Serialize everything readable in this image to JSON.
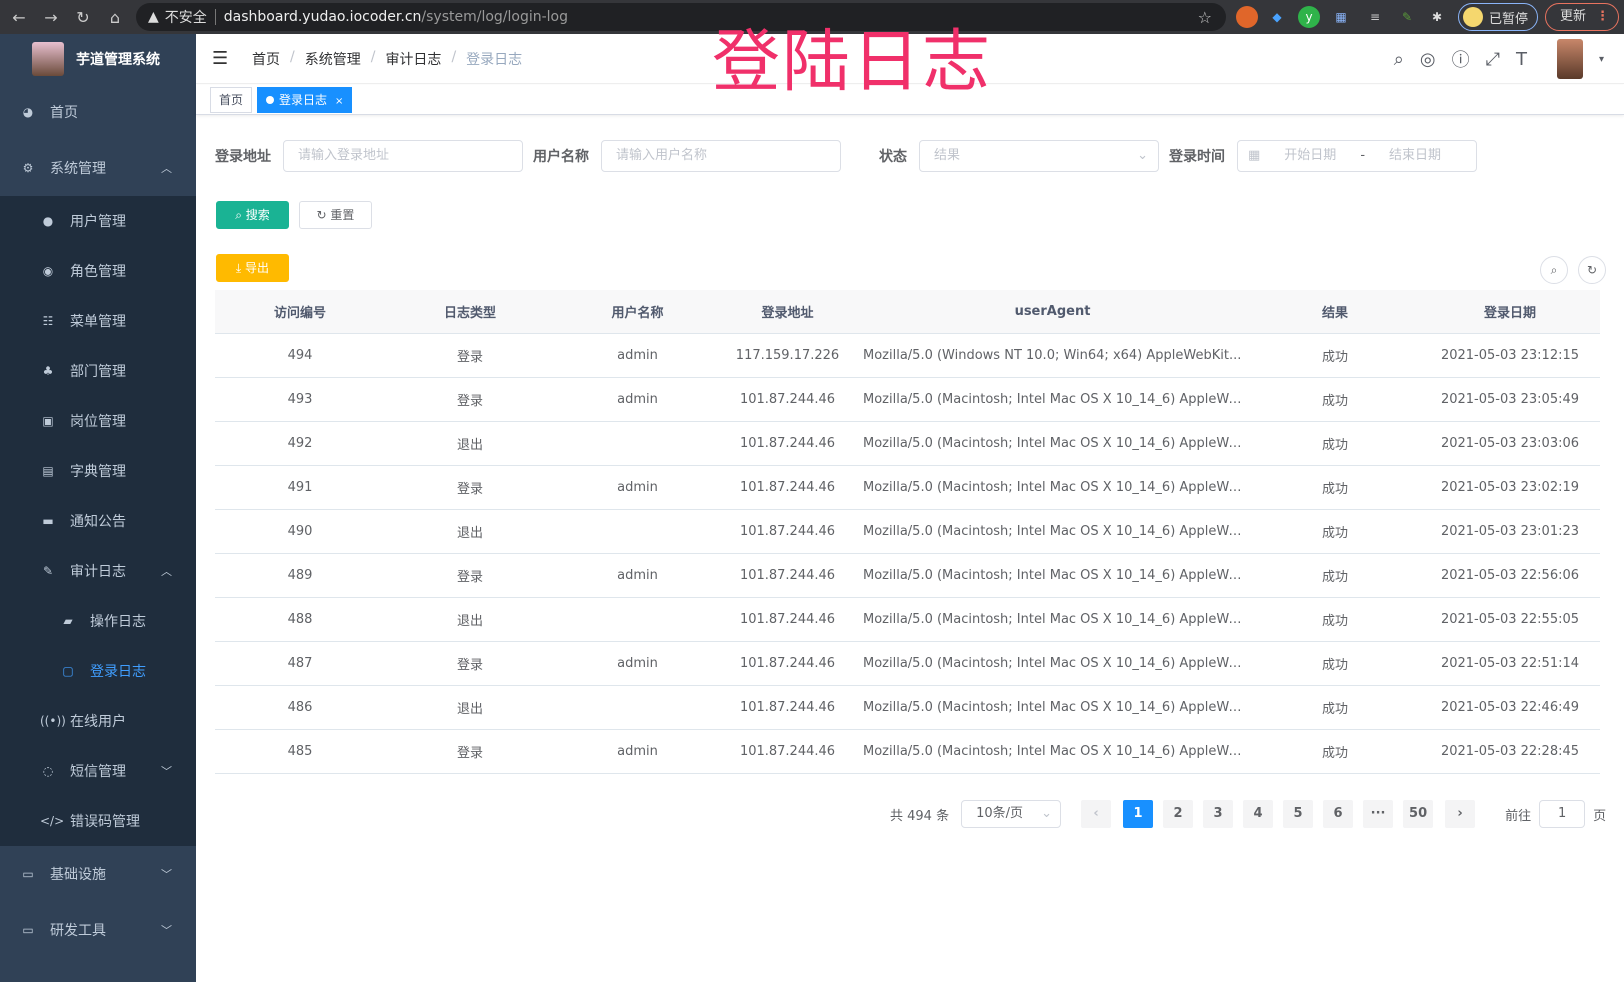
{
  "browser": {
    "url_warning": "不安全",
    "url_host": "dashboard.yudao.iocoder.cn",
    "url_path": "/system/log/login-log",
    "profile_label": "已暂停",
    "update_label": "更新"
  },
  "overlay_title": "登陆日志",
  "sidebar": {
    "app_title": "芋道管理系统",
    "items": [
      {
        "label": "首页",
        "icon": "dashboard-icon"
      },
      {
        "label": "系统管理",
        "icon": "gear-icon",
        "expanded": true,
        "children": [
          {
            "label": "用户管理",
            "icon": "user-icon"
          },
          {
            "label": "角色管理",
            "icon": "peoples-icon"
          },
          {
            "label": "菜单管理",
            "icon": "tree-table-icon"
          },
          {
            "label": "部门管理",
            "icon": "tree-icon"
          },
          {
            "label": "岗位管理",
            "icon": "post-icon"
          },
          {
            "label": "字典管理",
            "icon": "dict-icon"
          },
          {
            "label": "通知公告",
            "icon": "message-icon"
          },
          {
            "label": "审计日志",
            "icon": "log-icon",
            "expanded": true,
            "children": [
              {
                "label": "操作日志",
                "icon": "form-icon"
              },
              {
                "label": "登录日志",
                "icon": "logininfor-icon",
                "active": true
              }
            ]
          },
          {
            "label": "在线用户",
            "icon": "online-icon"
          },
          {
            "label": "短信管理",
            "icon": "shield-icon",
            "expanded": false
          },
          {
            "label": "错误码管理",
            "icon": "code-icon"
          }
        ]
      },
      {
        "label": "基础设施",
        "icon": "monitor-icon",
        "expanded": false
      },
      {
        "label": "研发工具",
        "icon": "tool-icon",
        "expanded": false
      }
    ]
  },
  "breadcrumb": [
    "首页",
    "系统管理",
    "审计日志",
    "登录日志"
  ],
  "tags": [
    {
      "label": "首页"
    },
    {
      "label": "登录日志",
      "active": true
    }
  ],
  "filters": {
    "address": {
      "label": "登录地址",
      "placeholder": "请输入登录地址"
    },
    "username": {
      "label": "用户名称",
      "placeholder": "请输入用户名称"
    },
    "status": {
      "label": "状态",
      "placeholder": "结果"
    },
    "time": {
      "label": "登录时间",
      "start_placeholder": "开始日期",
      "separator": "-",
      "end_placeholder": "结束日期"
    },
    "search_label": "搜索",
    "reset_label": "重置",
    "export_label": "导出"
  },
  "table": {
    "columns": [
      "访问编号",
      "日志类型",
      "用户名称",
      "登录地址",
      "userAgent",
      "结果",
      "登录日期"
    ],
    "rows": [
      [
        "494",
        "登录",
        "admin",
        "117.159.17.226",
        "Mozilla/5.0 (Windows NT 10.0; Win64; x64) AppleWebKit...",
        "成功",
        "2021-05-03 23:12:15"
      ],
      [
        "493",
        "登录",
        "admin",
        "101.87.244.46",
        "Mozilla/5.0 (Macintosh; Intel Mac OS X 10_14_6) AppleWe...",
        "成功",
        "2021-05-03 23:05:49"
      ],
      [
        "492",
        "退出",
        "",
        "101.87.244.46",
        "Mozilla/5.0 (Macintosh; Intel Mac OS X 10_14_6) AppleWe...",
        "成功",
        "2021-05-03 23:03:06"
      ],
      [
        "491",
        "登录",
        "admin",
        "101.87.244.46",
        "Mozilla/5.0 (Macintosh; Intel Mac OS X 10_14_6) AppleWe...",
        "成功",
        "2021-05-03 23:02:19"
      ],
      [
        "490",
        "退出",
        "",
        "101.87.244.46",
        "Mozilla/5.0 (Macintosh; Intel Mac OS X 10_14_6) AppleWe...",
        "成功",
        "2021-05-03 23:01:23"
      ],
      [
        "489",
        "登录",
        "admin",
        "101.87.244.46",
        "Mozilla/5.0 (Macintosh; Intel Mac OS X 10_14_6) AppleWe...",
        "成功",
        "2021-05-03 22:56:06"
      ],
      [
        "488",
        "退出",
        "",
        "101.87.244.46",
        "Mozilla/5.0 (Macintosh; Intel Mac OS X 10_14_6) AppleWe...",
        "成功",
        "2021-05-03 22:55:05"
      ],
      [
        "487",
        "登录",
        "admin",
        "101.87.244.46",
        "Mozilla/5.0 (Macintosh; Intel Mac OS X 10_14_6) AppleWe...",
        "成功",
        "2021-05-03 22:51:14"
      ],
      [
        "486",
        "退出",
        "",
        "101.87.244.46",
        "Mozilla/5.0 (Macintosh; Intel Mac OS X 10_14_6) AppleWe...",
        "成功",
        "2021-05-03 22:46:49"
      ],
      [
        "485",
        "登录",
        "admin",
        "101.87.244.46",
        "Mozilla/5.0 (Macintosh; Intel Mac OS X 10_14_6) AppleWe...",
        "成功",
        "2021-05-03 22:28:45"
      ]
    ]
  },
  "pagination": {
    "total_text": "共 494 条",
    "page_size": "10条/页",
    "prev": "‹",
    "pages": [
      "1",
      "2",
      "3",
      "4",
      "5",
      "6",
      "···",
      "50"
    ],
    "current": "1",
    "next": "›",
    "goto_label": "前往",
    "goto_value": "1",
    "goto_suffix": "页"
  },
  "colors": {
    "sidebar_bg": "#304156",
    "submenu_bg": "#1f2d3d",
    "primary": "#1890ff",
    "search_btn": "#1ab394",
    "export_btn": "#ffba00",
    "overlay": "#f0306a"
  }
}
